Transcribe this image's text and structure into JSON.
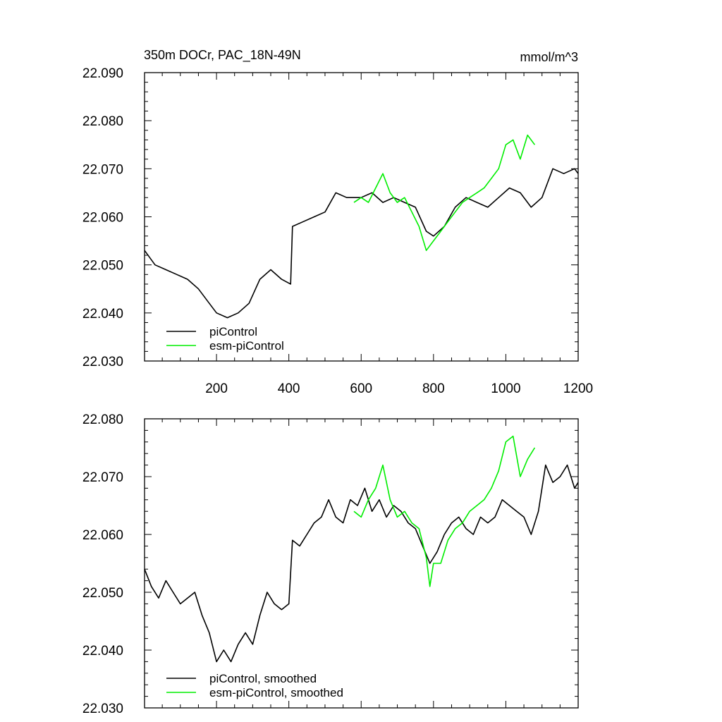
{
  "colors": {
    "background": "#ffffff",
    "axis": "#000000",
    "pi_control": "#000000",
    "esm_pi_control": "#00ee00"
  },
  "chart_data": [
    {
      "type": "line",
      "title": "350m DOCr, PAC_18N-49N",
      "units": "mmol/m^3",
      "xlim": [
        1,
        1200
      ],
      "ylim": [
        22.03,
        22.09
      ],
      "x_ticks": [
        200,
        400,
        600,
        800,
        1000,
        1200
      ],
      "x_tick_labels": [
        "200",
        "400",
        "600",
        "800",
        "1000",
        "1200"
      ],
      "y_ticks": [
        22.03,
        22.04,
        22.05,
        22.06,
        22.07,
        22.08,
        22.09
      ],
      "y_tick_labels": [
        "22.030",
        "22.040",
        "22.050",
        "22.060",
        "22.070",
        "22.080",
        "22.090"
      ],
      "grid": false,
      "legend": "bottom-left",
      "series": [
        {
          "name": "piControl",
          "color": "#000000",
          "x": [
            1,
            30,
            60,
            90,
            120,
            150,
            180,
            200,
            230,
            260,
            290,
            320,
            350,
            380,
            405,
            410,
            440,
            470,
            500,
            530,
            560,
            600,
            630,
            660,
            690,
            720,
            750,
            780,
            800,
            830,
            860,
            890,
            920,
            950,
            980,
            1010,
            1040,
            1070,
            1100,
            1130,
            1160,
            1190,
            1200
          ],
          "y": [
            22.053,
            22.05,
            22.049,
            22.048,
            22.047,
            22.045,
            22.042,
            22.04,
            22.039,
            22.04,
            22.042,
            22.047,
            22.049,
            22.047,
            22.046,
            22.058,
            22.059,
            22.06,
            22.061,
            22.065,
            22.064,
            22.064,
            22.065,
            22.063,
            22.064,
            22.063,
            22.062,
            22.057,
            22.056,
            22.058,
            22.062,
            22.064,
            22.063,
            22.062,
            22.064,
            22.066,
            22.065,
            22.062,
            22.064,
            22.07,
            22.069,
            22.07,
            22.069
          ]
        },
        {
          "name": "esm-piControl",
          "color": "#00ee00",
          "x": [
            580,
            600,
            620,
            640,
            660,
            680,
            700,
            720,
            740,
            760,
            780,
            800,
            820,
            840,
            860,
            880,
            900,
            920,
            940,
            960,
            980,
            1000,
            1020,
            1040,
            1060,
            1080
          ],
          "y": [
            22.063,
            22.064,
            22.063,
            22.066,
            22.069,
            22.065,
            22.063,
            22.064,
            22.061,
            22.058,
            22.053,
            22.055,
            22.057,
            22.059,
            22.061,
            22.063,
            22.064,
            22.065,
            22.066,
            22.068,
            22.07,
            22.075,
            22.076,
            22.072,
            22.077,
            22.075
          ]
        }
      ]
    },
    {
      "type": "line",
      "xlim": [
        1,
        1200
      ],
      "ylim": [
        22.03,
        22.08
      ],
      "x_ticks": [
        200,
        400,
        600,
        800,
        1000,
        1200
      ],
      "y_ticks": [
        22.03,
        22.04,
        22.05,
        22.06,
        22.07,
        22.08
      ],
      "y_tick_labels": [
        "22.030",
        "22.040",
        "22.050",
        "22.060",
        "22.070",
        "22.080"
      ],
      "grid": false,
      "legend": "bottom-left",
      "series": [
        {
          "name": "piControl, smoothed",
          "color": "#000000",
          "x": [
            1,
            20,
            40,
            60,
            80,
            100,
            120,
            140,
            160,
            180,
            200,
            220,
            240,
            260,
            280,
            300,
            320,
            340,
            360,
            380,
            400,
            410,
            430,
            450,
            470,
            490,
            510,
            530,
            550,
            570,
            590,
            610,
            630,
            650,
            670,
            690,
            710,
            730,
            750,
            770,
            790,
            810,
            830,
            850,
            870,
            890,
            910,
            930,
            950,
            970,
            990,
            1010,
            1030,
            1050,
            1070,
            1090,
            1110,
            1130,
            1150,
            1170,
            1190,
            1200
          ],
          "y": [
            22.054,
            22.051,
            22.049,
            22.052,
            22.05,
            22.048,
            22.049,
            22.05,
            22.046,
            22.043,
            22.038,
            22.04,
            22.038,
            22.041,
            22.043,
            22.041,
            22.046,
            22.05,
            22.048,
            22.047,
            22.048,
            22.059,
            22.058,
            22.06,
            22.062,
            22.063,
            22.066,
            22.063,
            22.062,
            22.066,
            22.065,
            22.068,
            22.064,
            22.066,
            22.063,
            22.065,
            22.064,
            22.062,
            22.061,
            22.058,
            22.055,
            22.057,
            22.06,
            22.062,
            22.063,
            22.061,
            22.06,
            22.063,
            22.062,
            22.063,
            22.066,
            22.065,
            22.064,
            22.063,
            22.06,
            22.064,
            22.072,
            22.069,
            22.07,
            22.072,
            22.068,
            22.069
          ]
        },
        {
          "name": "esm-piControl, smoothed",
          "color": "#00ee00",
          "x": [
            580,
            600,
            620,
            640,
            660,
            680,
            700,
            720,
            740,
            760,
            780,
            790,
            800,
            820,
            840,
            860,
            880,
            900,
            920,
            940,
            960,
            980,
            1000,
            1020,
            1040,
            1060,
            1080
          ],
          "y": [
            22.064,
            22.063,
            22.066,
            22.068,
            22.072,
            22.066,
            22.063,
            22.064,
            22.062,
            22.061,
            22.056,
            22.051,
            22.055,
            22.055,
            22.059,
            22.061,
            22.062,
            22.064,
            22.065,
            22.066,
            22.068,
            22.071,
            22.076,
            22.077,
            22.07,
            22.073,
            22.075
          ]
        }
      ]
    }
  ]
}
